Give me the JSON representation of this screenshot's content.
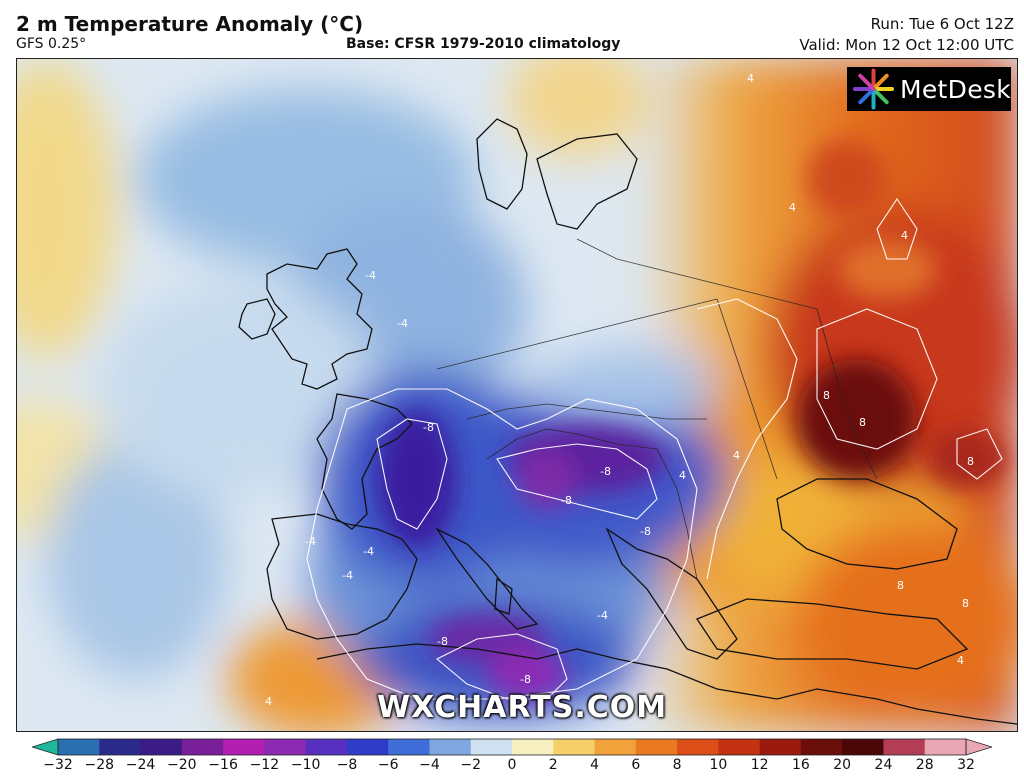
{
  "header": {
    "title": "2 m Temperature Anomaly (°C)",
    "model": "GFS 0.25°",
    "base": "Base: CFSR 1979-2010 climatology",
    "run": "Run: Tue 6 Oct 12Z",
    "valid": "Valid: Mon 12 Oct 12:00 UTC"
  },
  "branding": {
    "logo_text": "MetDesk",
    "watermark": "WXCHARTS.COM"
  },
  "contour_labels": [
    "-8",
    "-8",
    "-8",
    "-8",
    "-8",
    "-8",
    "-4",
    "-4",
    "-4",
    "-4",
    "-4",
    "-4",
    "4",
    "4",
    "4",
    "4",
    "4",
    "4",
    "4",
    "8",
    "8",
    "8",
    "8",
    "8"
  ],
  "colorbar": {
    "ticks": [
      "−32",
      "−28",
      "−24",
      "−20",
      "−16",
      "−12",
      "−10",
      "−8",
      "−6",
      "−4",
      "−2",
      "0",
      "2",
      "4",
      "6",
      "8",
      "10",
      "12",
      "16",
      "20",
      "24",
      "28",
      "32"
    ],
    "colors": [
      "#1fb89a",
      "#2a6fb0",
      "#2a2a8a",
      "#3b1b86",
      "#7a1f9a",
      "#b21fb0",
      "#8c2ab3",
      "#5830c0",
      "#2e3cc8",
      "#3f6ed8",
      "#7fa6e0",
      "#cfe1f1",
      "#f6efc0",
      "#f5cf6a",
      "#f2a23a",
      "#ea7a22",
      "#dc4e17",
      "#c23212",
      "#9a1a10",
      "#6a0e0a",
      "#4a0606",
      "#b33d55",
      "#e9a7b6"
    ]
  }
}
